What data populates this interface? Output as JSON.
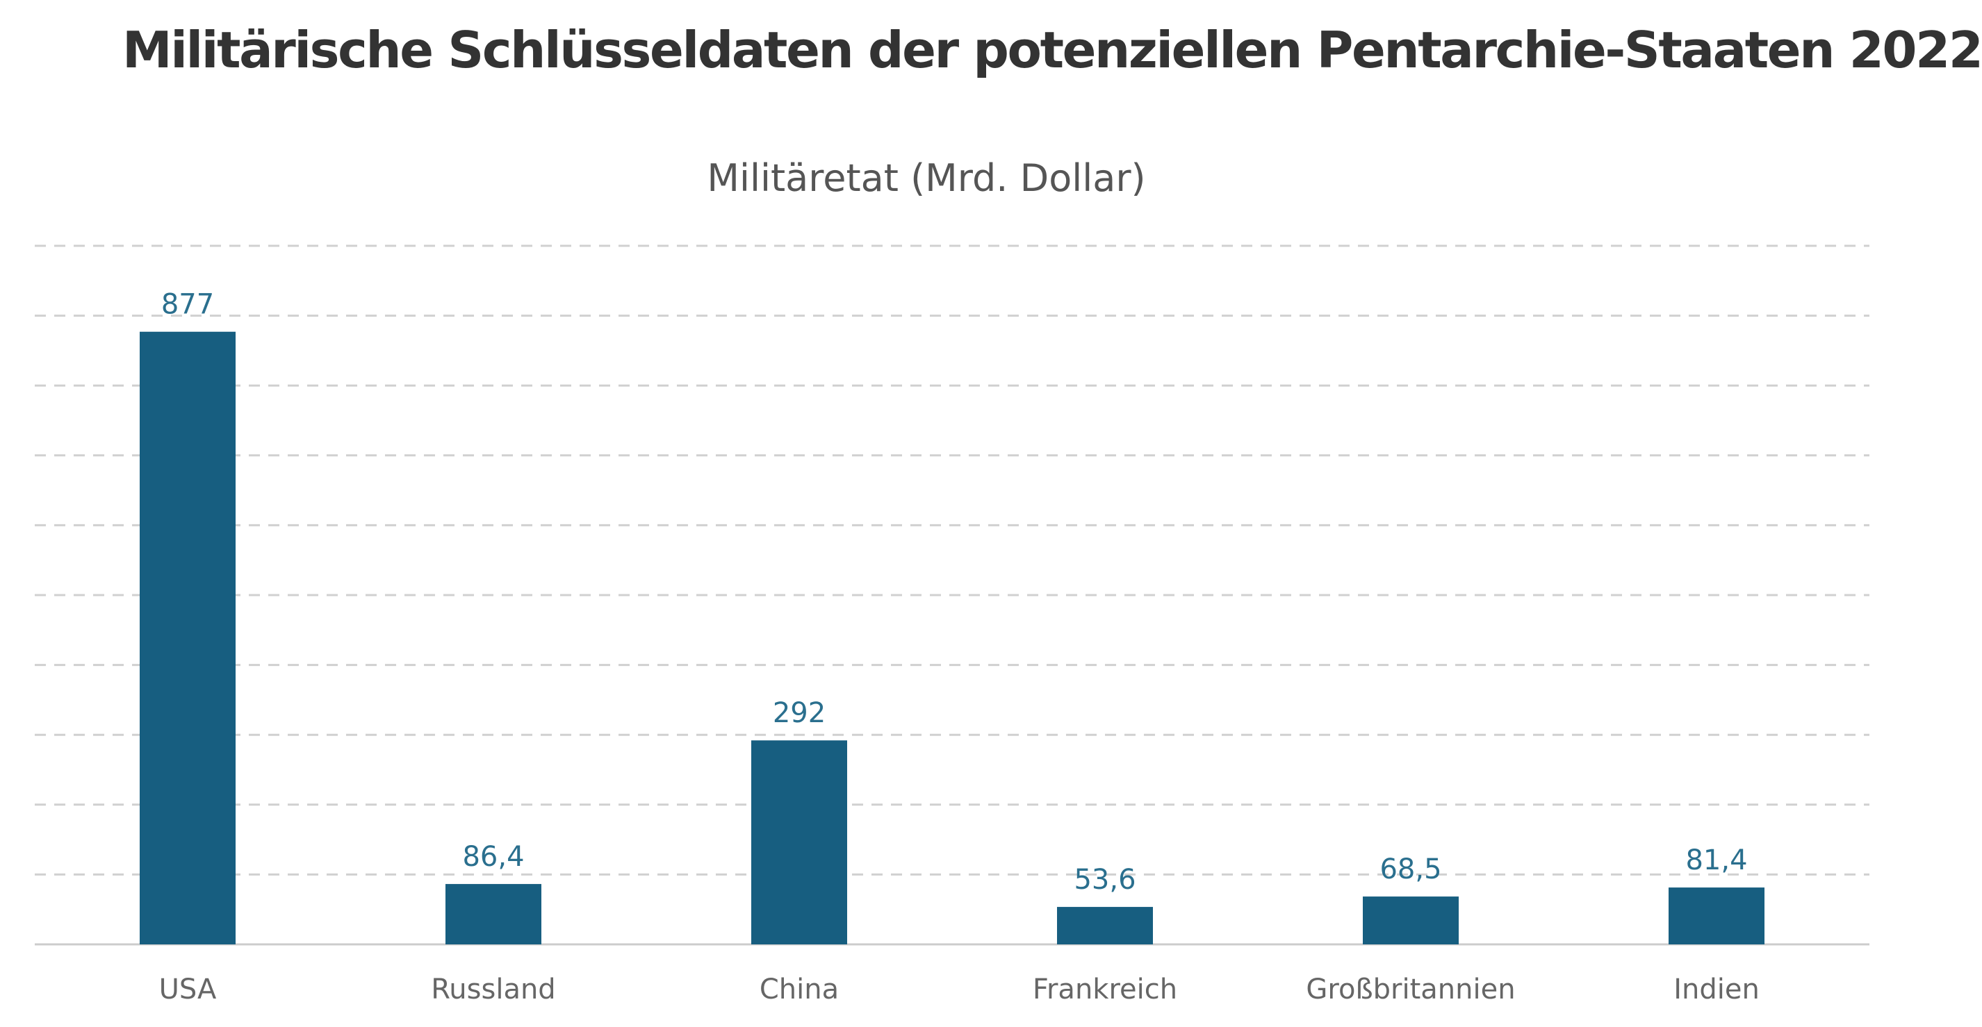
{
  "title": "Militärische Schlüsseldaten der potenziellen Pentarchie-Staaten 2022",
  "colors": {
    "bar": "#175e80",
    "data_label": "#2a6f8e",
    "title": "#333333"
  },
  "chart_data": {
    "type": "bar",
    "title": "Militäretat (Mrd. Dollar)",
    "xlabel": "",
    "ylabel": "",
    "categories": [
      "USA",
      "Russland",
      "China",
      "Frankreich",
      "Großbritannien",
      "Indien"
    ],
    "values": [
      877,
      86.4,
      292,
      53.6,
      68.5,
      81.4
    ],
    "value_labels": [
      "877",
      "86,4",
      "292",
      "53,6",
      "68,5",
      "81,4"
    ],
    "ylim": [
      0,
      1000
    ],
    "grid": true,
    "grid_step": 100,
    "legend": "none"
  }
}
